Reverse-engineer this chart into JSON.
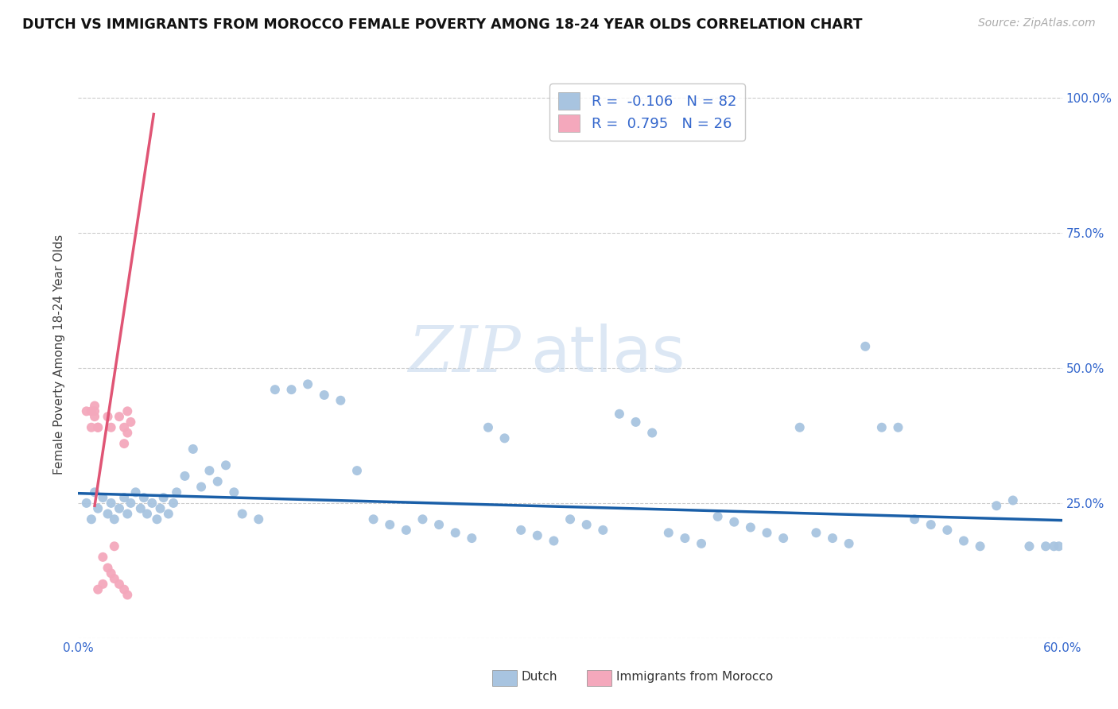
{
  "title": "DUTCH VS IMMIGRANTS FROM MOROCCO FEMALE POVERTY AMONG 18-24 YEAR OLDS CORRELATION CHART",
  "source": "Source: ZipAtlas.com",
  "ylabel": "Female Poverty Among 18-24 Year Olds",
  "xlim": [
    0.0,
    0.6
  ],
  "ylim": [
    0.0,
    1.05
  ],
  "xticks": [
    0.0,
    0.1,
    0.2,
    0.3,
    0.4,
    0.5,
    0.6
  ],
  "xticklabels": [
    "0.0%",
    "",
    "",
    "",
    "",
    "",
    "60.0%"
  ],
  "yticks": [
    0.0,
    0.25,
    0.5,
    0.75,
    1.0
  ],
  "yticklabels_right": [
    "",
    "25.0%",
    "50.0%",
    "75.0%",
    "100.0%"
  ],
  "dutch_color": "#a8c4e0",
  "morocco_color": "#f4a8bc",
  "dutch_line_color": "#1a5fa8",
  "morocco_line_color": "#e05575",
  "dutch_R": -0.106,
  "dutch_N": 82,
  "morocco_R": 0.795,
  "morocco_N": 26,
  "watermark": "ZIPatlas",
  "dutch_scatter_x": [
    0.005,
    0.008,
    0.01,
    0.012,
    0.015,
    0.018,
    0.02,
    0.022,
    0.025,
    0.028,
    0.03,
    0.032,
    0.035,
    0.038,
    0.04,
    0.042,
    0.045,
    0.048,
    0.05,
    0.052,
    0.055,
    0.058,
    0.06,
    0.065,
    0.07,
    0.075,
    0.08,
    0.085,
    0.09,
    0.095,
    0.1,
    0.11,
    0.12,
    0.13,
    0.14,
    0.15,
    0.16,
    0.17,
    0.18,
    0.19,
    0.2,
    0.21,
    0.22,
    0.23,
    0.24,
    0.25,
    0.26,
    0.27,
    0.28,
    0.29,
    0.3,
    0.31,
    0.32,
    0.33,
    0.34,
    0.35,
    0.36,
    0.37,
    0.38,
    0.39,
    0.4,
    0.41,
    0.42,
    0.43,
    0.44,
    0.45,
    0.46,
    0.47,
    0.48,
    0.49,
    0.5,
    0.51,
    0.52,
    0.53,
    0.54,
    0.55,
    0.56,
    0.57,
    0.58,
    0.59,
    0.595,
    0.598
  ],
  "dutch_scatter_y": [
    0.25,
    0.22,
    0.27,
    0.24,
    0.26,
    0.23,
    0.25,
    0.22,
    0.24,
    0.26,
    0.23,
    0.25,
    0.27,
    0.24,
    0.26,
    0.23,
    0.25,
    0.22,
    0.24,
    0.26,
    0.23,
    0.25,
    0.27,
    0.3,
    0.35,
    0.28,
    0.31,
    0.29,
    0.32,
    0.27,
    0.23,
    0.22,
    0.46,
    0.46,
    0.47,
    0.45,
    0.44,
    0.31,
    0.22,
    0.21,
    0.2,
    0.22,
    0.21,
    0.195,
    0.185,
    0.39,
    0.37,
    0.2,
    0.19,
    0.18,
    0.22,
    0.21,
    0.2,
    0.415,
    0.4,
    0.38,
    0.195,
    0.185,
    0.175,
    0.225,
    0.215,
    0.205,
    0.195,
    0.185,
    0.39,
    0.195,
    0.185,
    0.175,
    0.54,
    0.39,
    0.39,
    0.22,
    0.21,
    0.2,
    0.18,
    0.17,
    0.245,
    0.255,
    0.17,
    0.17,
    0.17,
    0.17
  ],
  "morocco_scatter_x": [
    0.005,
    0.008,
    0.01,
    0.012,
    0.015,
    0.018,
    0.02,
    0.022,
    0.025,
    0.028,
    0.03,
    0.032,
    0.03,
    0.028,
    0.01,
    0.012,
    0.015,
    0.018,
    0.02,
    0.022,
    0.025,
    0.028,
    0.03,
    0.008,
    0.01,
    0.012
  ],
  "morocco_scatter_y": [
    0.42,
    0.39,
    0.43,
    0.09,
    0.1,
    0.41,
    0.39,
    0.17,
    0.41,
    0.39,
    0.42,
    0.4,
    0.38,
    0.36,
    0.42,
    0.39,
    0.15,
    0.13,
    0.12,
    0.11,
    0.1,
    0.09,
    0.08,
    0.42,
    0.41,
    0.39
  ],
  "dutch_trend_x": [
    0.0,
    0.6
  ],
  "dutch_trend_y": [
    0.268,
    0.218
  ],
  "morocco_trend_x": [
    0.01,
    0.046
  ],
  "morocco_trend_y": [
    0.245,
    0.97
  ]
}
